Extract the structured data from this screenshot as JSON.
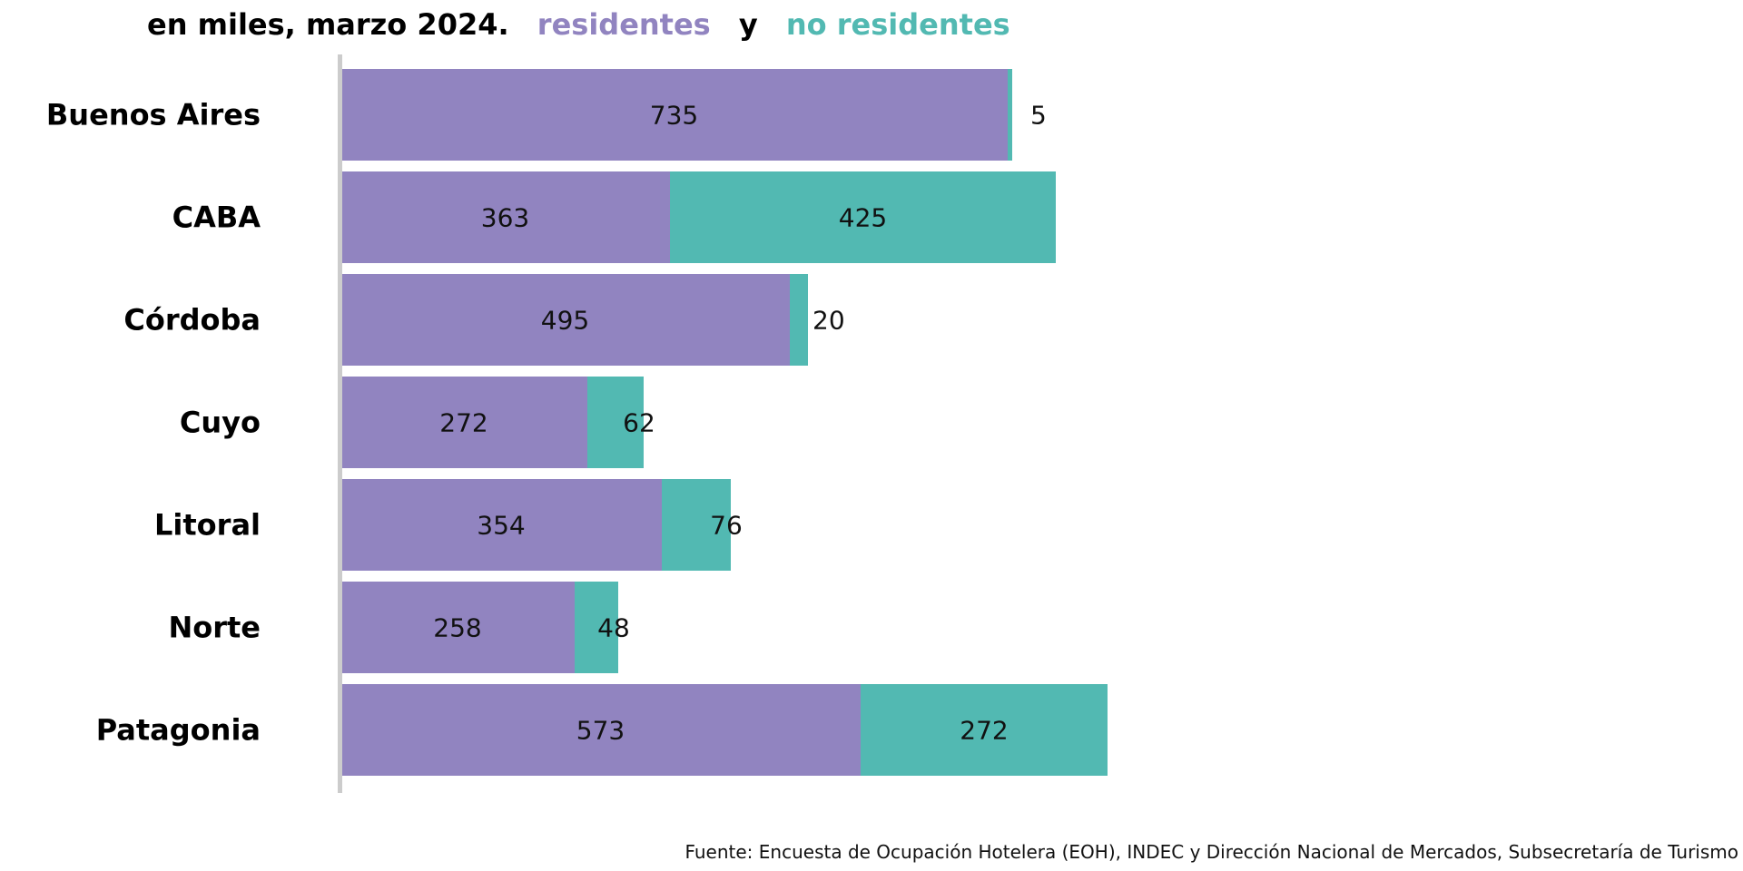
{
  "chart_data": {
    "type": "bar",
    "orientation": "horizontal",
    "stacked": true,
    "title": {
      "prefix": "en miles, marzo 2024.",
      "series_a": "residentes",
      "connector": "y",
      "series_b": "no residentes"
    },
    "categories": [
      "Buenos Aires",
      "CABA",
      "Córdoba",
      "Cuyo",
      "Litoral",
      "Norte",
      "Patagonia"
    ],
    "series": [
      {
        "name": "residentes",
        "color": "#9184c0",
        "values": [
          735,
          363,
          495,
          272,
          354,
          258,
          573
        ]
      },
      {
        "name": "no residentes",
        "color": "#52b9b2",
        "values": [
          5,
          425,
          20,
          62,
          76,
          48,
          272
        ]
      }
    ],
    "xlim": [
      0,
      1540
    ],
    "axis_color": "#cccccc",
    "grid": false,
    "source": "Fuente: Encuesta de Ocupación Hotelera (EOH), INDEC y Dirección Nacional de Mercados, Subsecretaría de Turismo"
  }
}
